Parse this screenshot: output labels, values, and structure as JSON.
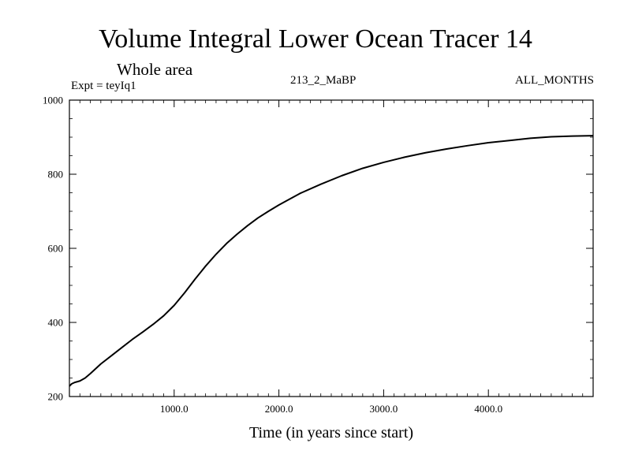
{
  "chart_data": {
    "type": "line",
    "title": "Volume Integral Lower Ocean Tracer 14",
    "subtitle": "Whole area",
    "experiment_label": "Expt = teyIq1",
    "run_label": "213_2_MaBP",
    "months_label": "ALL_MONTHS",
    "xlabel": "Time (in years since start)",
    "ylabel": "",
    "xlim": [
      0,
      5000
    ],
    "ylim": [
      200,
      1000
    ],
    "xticks": [
      1000,
      2000,
      3000,
      4000
    ],
    "xtick_labels": [
      "1000.0",
      "2000.0",
      "3000.0",
      "4000.0"
    ],
    "yticks": [
      200,
      400,
      600,
      800,
      1000
    ],
    "ytick_labels": [
      "200",
      "400",
      "600",
      "800",
      "1000"
    ],
    "grid": false,
    "series": [
      {
        "name": "Lower Ocean Tracer 14",
        "color": "#000000",
        "x": [
          0,
          20,
          50,
          100,
          150,
          200,
          300,
          400,
          500,
          600,
          700,
          800,
          900,
          1000,
          1100,
          1200,
          1300,
          1400,
          1500,
          1600,
          1700,
          1800,
          1900,
          2000,
          2200,
          2400,
          2600,
          2800,
          3000,
          3200,
          3400,
          3600,
          3800,
          4000,
          4200,
          4400,
          4600,
          4800,
          5000
        ],
        "y": [
          228,
          234,
          238,
          242,
          250,
          262,
          288,
          310,
          332,
          354,
          374,
          395,
          418,
          446,
          480,
          517,
          552,
          584,
          613,
          638,
          661,
          682,
          700,
          717,
          748,
          773,
          796,
          816,
          832,
          846,
          858,
          868,
          877,
          885,
          891,
          897,
          901,
          903,
          904
        ]
      }
    ]
  }
}
